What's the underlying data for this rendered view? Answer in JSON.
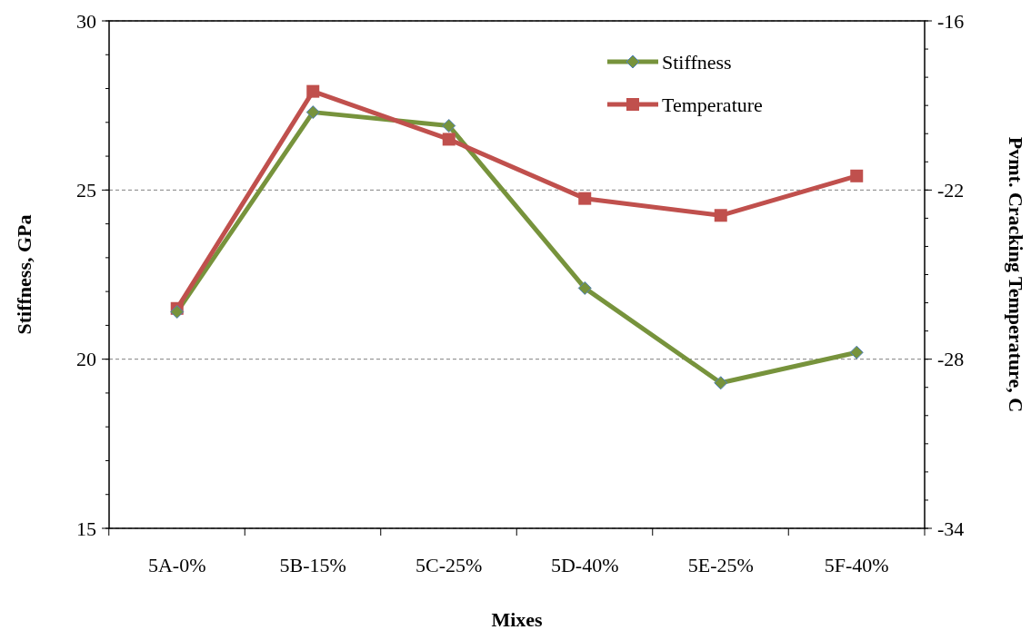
{
  "chart_data": {
    "type": "line",
    "xlabel": "Mixes",
    "ylabel": "Stiffness, GPa",
    "y2label": "Pvmt. Cracking Temperature,  C",
    "categories": [
      "5A-0%",
      "5B-15%",
      "5C-25%",
      "5D-40%",
      "5E-25%",
      "5F-40%"
    ],
    "series": [
      {
        "name": "Stiffness",
        "color": "#77933c",
        "marker": "diamond",
        "values": [
          21.4,
          27.3,
          26.9,
          22.1,
          19.3,
          20.2
        ]
      },
      {
        "name": "Temperature",
        "color": "#c0504d",
        "marker": "square",
        "axis": "y2",
        "values": [
          -26.2,
          -18.5,
          -20.2,
          -22.3,
          -22.9,
          -21.5
        ]
      }
    ],
    "ylim": [
      15,
      30
    ],
    "yticks": [
      15,
      20,
      25,
      30
    ],
    "y2lim": [
      -34,
      -16
    ],
    "y2ticks": [
      -34,
      -28,
      -22,
      -16
    ],
    "grid": "y",
    "legend": "top right"
  }
}
